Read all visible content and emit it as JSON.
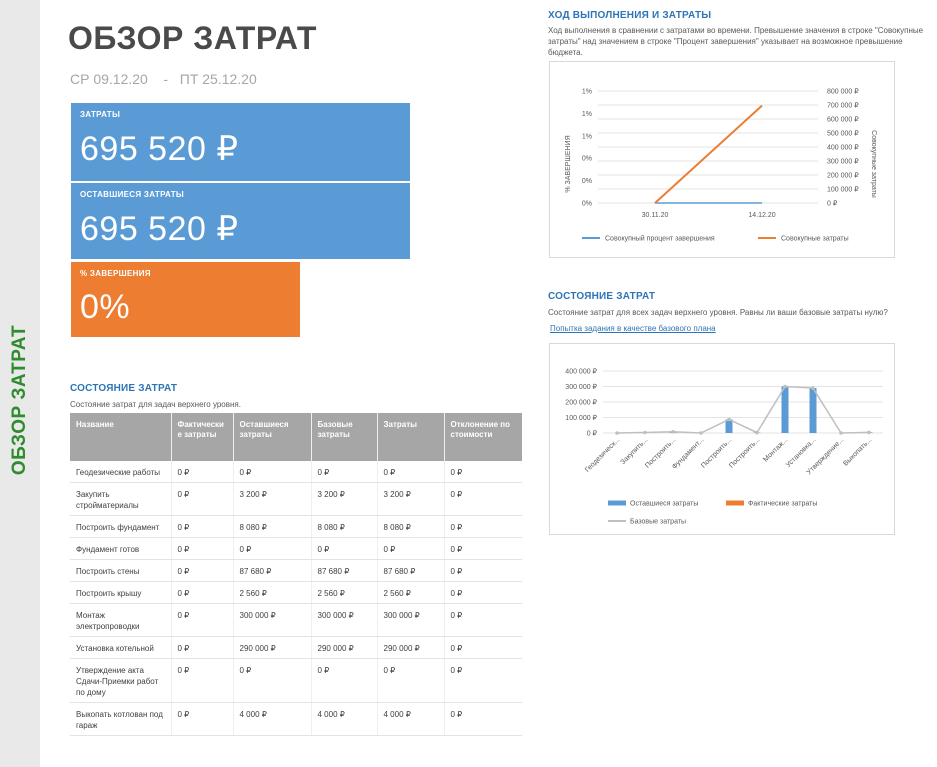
{
  "side_title": "ОБЗОР ЗАТРАТ",
  "header": {
    "title": "ОБЗОР ЗАТРАТ",
    "date_start": "СР 09.12.20",
    "date_sep": "-",
    "date_end": "ПТ 25.12.20"
  },
  "tiles": {
    "costs": {
      "label": "ЗАТРАТЫ",
      "value": "695 520 ₽"
    },
    "remaining": {
      "label": "ОСТАВШИЕСЯ ЗАТРАТЫ",
      "value": "695 520 ₽"
    },
    "completion": {
      "label": "% ЗАВЕРШЕНИЯ",
      "value": "0%"
    }
  },
  "colors": {
    "blue": "#5b9bd5",
    "orange": "#ed7d31",
    "gray": "#a6a6a6",
    "green": "#2e8b2e"
  },
  "cost_status": {
    "heading": "СОСТОЯНИЕ ЗАТРАТ",
    "description": "Состояние затрат для задач верхнего уровня.",
    "columns": [
      "Название",
      "Фактически е затраты",
      "Оставшиеся затраты",
      "Базовые затраты",
      "Затраты",
      "Отклонение по стоимости"
    ],
    "rows": [
      [
        "Геодезические работы",
        "0 ₽",
        "0 ₽",
        "0 ₽",
        "0 ₽",
        "0 ₽"
      ],
      [
        "Закупить стройматериалы",
        "0 ₽",
        "3 200 ₽",
        "3 200 ₽",
        "3 200 ₽",
        "0 ₽"
      ],
      [
        "Построить фундамент",
        "0 ₽",
        "8 080 ₽",
        "8 080 ₽",
        "8 080 ₽",
        "0 ₽"
      ],
      [
        "Фундамент готов",
        "0 ₽",
        "0 ₽",
        "0 ₽",
        "0 ₽",
        "0 ₽"
      ],
      [
        "Построить стены",
        "0 ₽",
        "87 680 ₽",
        "87 680 ₽",
        "87 680 ₽",
        "0 ₽"
      ],
      [
        "Построить крышу",
        "0 ₽",
        "2 560 ₽",
        "2 560 ₽",
        "2 560 ₽",
        "0 ₽"
      ],
      [
        "Монтаж электропроводки",
        "0 ₽",
        "300 000 ₽",
        "300 000 ₽",
        "300 000 ₽",
        "0 ₽"
      ],
      [
        "Установка котельной",
        "0 ₽",
        "290 000 ₽",
        "290 000 ₽",
        "290 000 ₽",
        "0 ₽"
      ],
      [
        "Утверждение акта Сдачи-Приемки работ по дому",
        "0 ₽",
        "0 ₽",
        "0 ₽",
        "0 ₽",
        "0 ₽"
      ],
      [
        "Выкопать котлован под гараж",
        "0 ₽",
        "4 000 ₽",
        "4 000 ₽",
        "4 000 ₽",
        "0 ₽"
      ]
    ]
  },
  "progress": {
    "heading": "ХОД ВЫПОЛНЕНИЯ И ЗАТРАТЫ",
    "description": "Ход выполнения в сравнении с затратами во времени. Превышение значения в строке \"Совокупные затраты\" над значением в строке \"Процент завершения\" указывает на возможное превышение бюджета."
  },
  "status2": {
    "heading": "СОСТОЯНИЕ ЗАТРАТ",
    "description": "Состояние затрат для всех задач верхнего уровня. Равны ли ваши базовые затраты нулю?",
    "link": "Попытка задания в качестве базового плана"
  },
  "chart_data": [
    {
      "type": "line",
      "x": [
        "30.11.20",
        "14.12.20"
      ],
      "left_axis": {
        "title": "% ЗАВЕРШЕНИЯ",
        "ticks": [
          "1%",
          "1%",
          "1%",
          "0%",
          "0%",
          "0%"
        ]
      },
      "right_axis": {
        "title": "Совокупные затраты",
        "ticks": [
          "800 000 ₽",
          "700 000 ₽",
          "600 000 ₽",
          "500 000 ₽",
          "400 000 ₽",
          "300 000 ₽",
          "200 000 ₽",
          "100 000 ₽",
          "0 ₽"
        ],
        "ylim": [
          0,
          800000
        ]
      },
      "series": [
        {
          "name": "Совокупный процент завершения",
          "axis": "left",
          "values": [
            0,
            0
          ],
          "color": "#5b9bd5"
        },
        {
          "name": "Совокупные затраты",
          "axis": "right",
          "values": [
            0,
            695520
          ],
          "color": "#ed7d31"
        }
      ],
      "grid": true,
      "legend": "bottom"
    },
    {
      "type": "bar",
      "categories": [
        "Геодезическ...",
        "Закупить...",
        "Построить...",
        "Фундамент...",
        "Построить...",
        "Построить...",
        "Монтаж...",
        "Установка...",
        "Утверждение...",
        "Выкопать..."
      ],
      "y_ticks": [
        "400 000 ₽",
        "300 000 ₽",
        "200 000 ₽",
        "100 000 ₽",
        "0 ₽"
      ],
      "ylim": [
        0,
        400000
      ],
      "series": [
        {
          "name": "Оставшиеся затраты",
          "kind": "bar",
          "color": "#5b9bd5",
          "values": [
            0,
            3200,
            8080,
            0,
            87680,
            2560,
            300000,
            290000,
            0,
            4000
          ]
        },
        {
          "name": "Фактические затраты",
          "kind": "bar",
          "color": "#ed7d31",
          "values": [
            0,
            0,
            0,
            0,
            0,
            0,
            0,
            0,
            0,
            0
          ]
        },
        {
          "name": "Базовые затраты",
          "kind": "line",
          "color": "#bfbfbf",
          "values": [
            0,
            3200,
            8080,
            0,
            87680,
            2560,
            300000,
            290000,
            0,
            4000
          ]
        }
      ],
      "grid": true,
      "legend": "bottom"
    }
  ]
}
